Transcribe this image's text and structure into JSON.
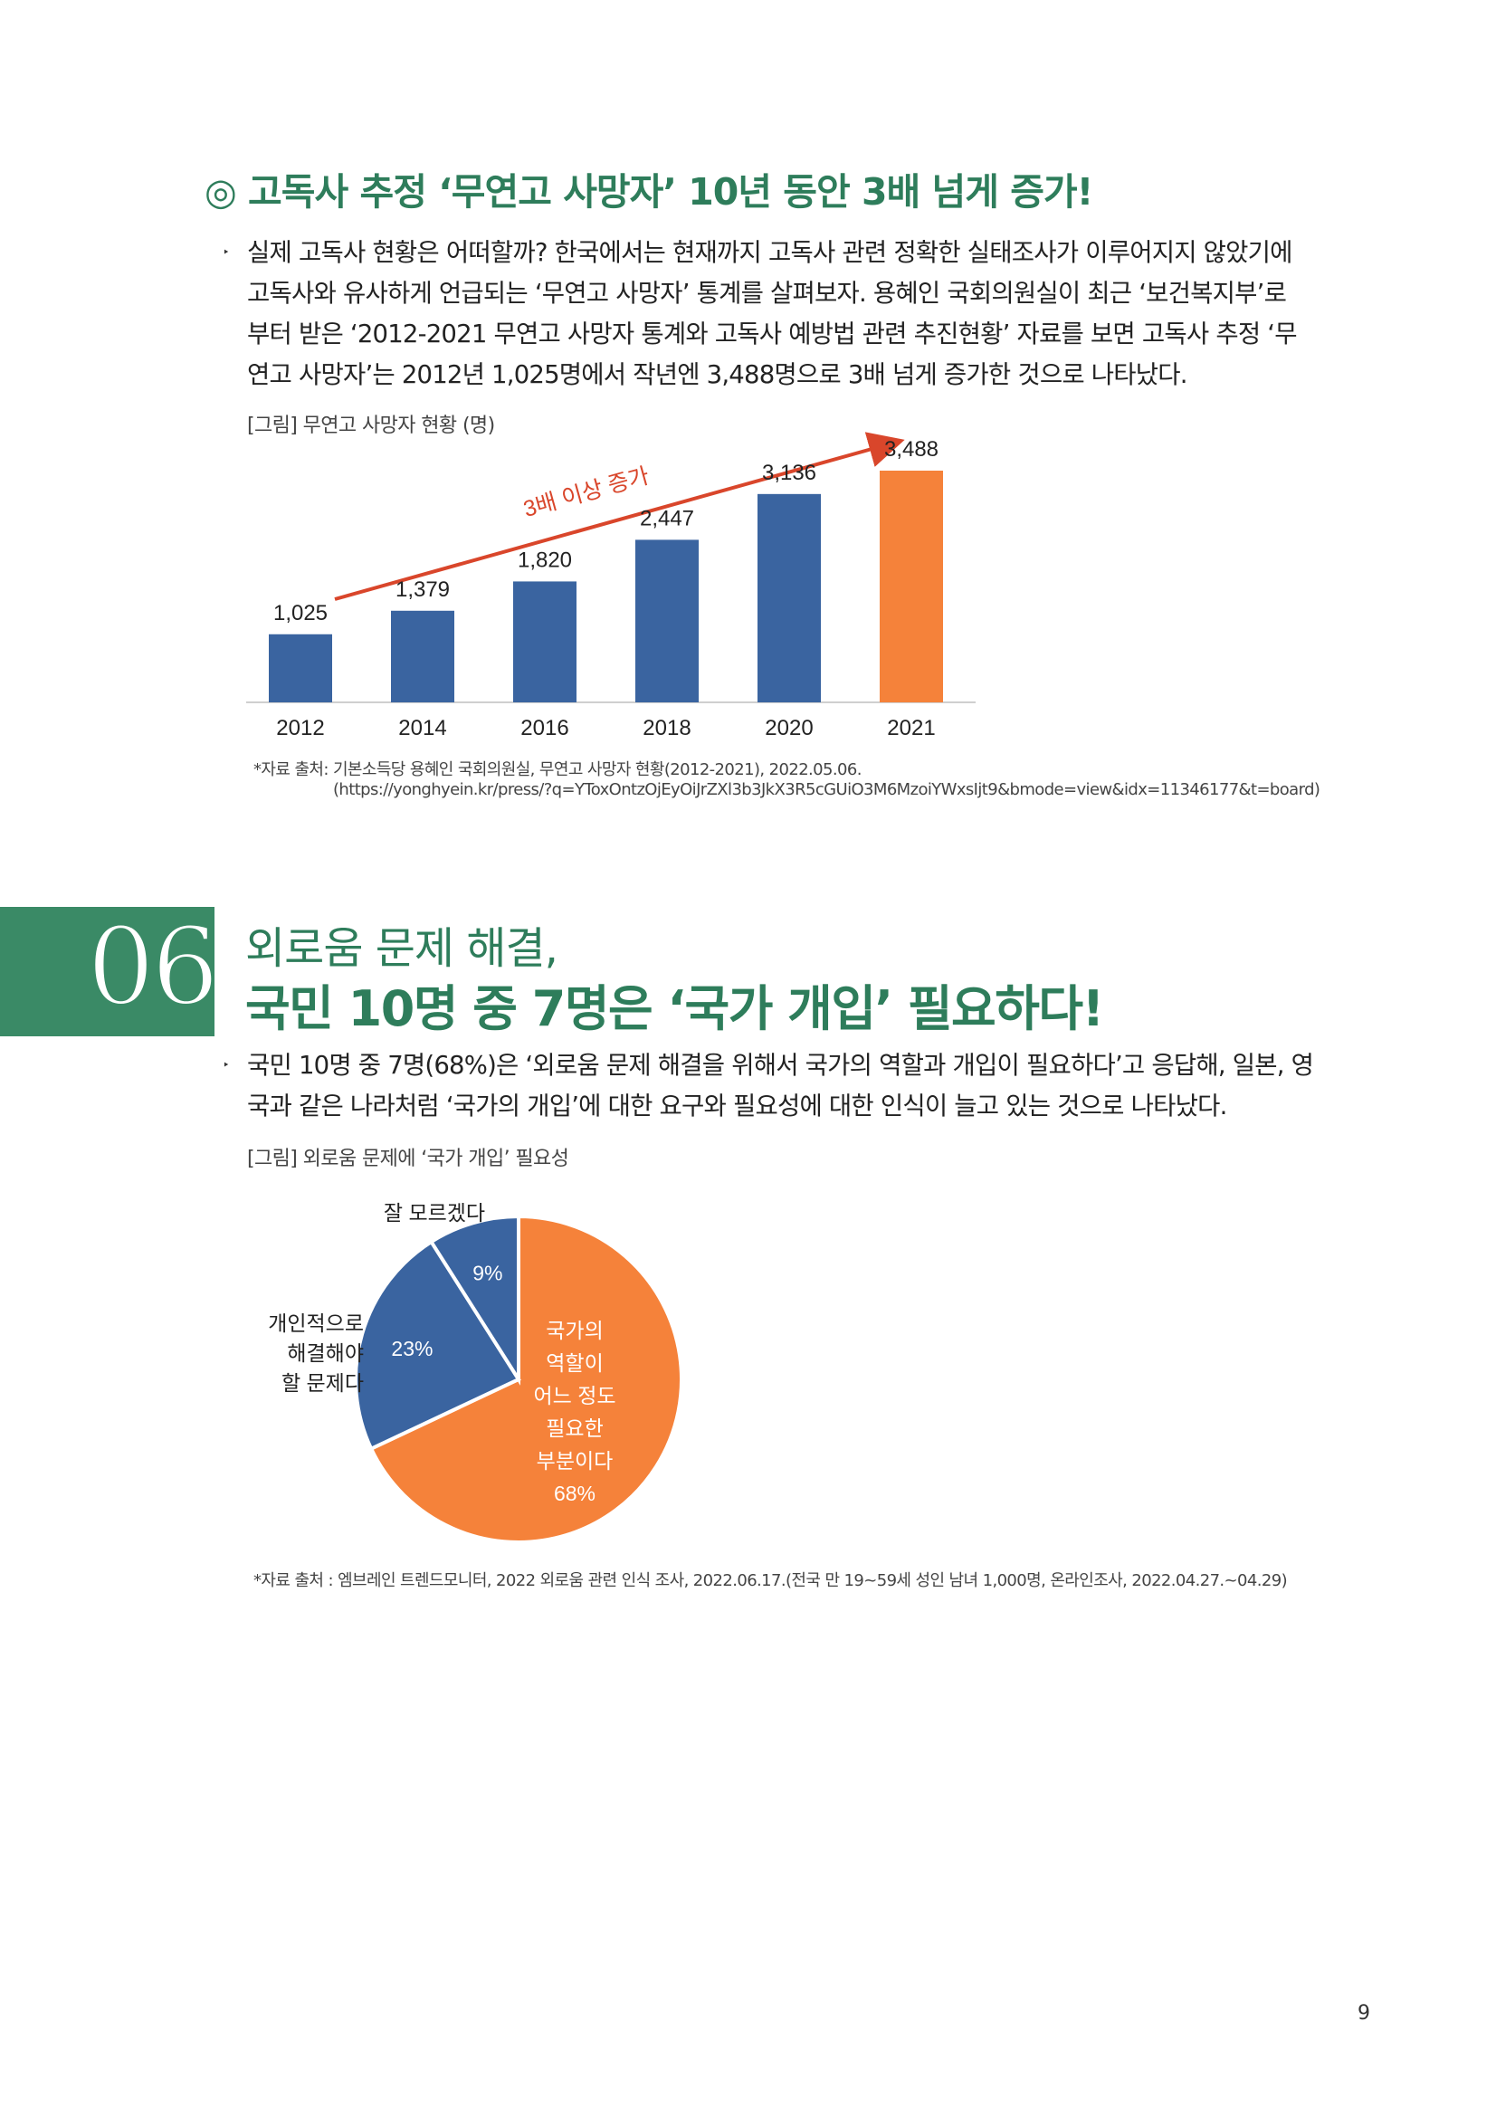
{
  "section1": {
    "heading": "◎ 고독사 추정 ‘무연고 사망자’ 10년 동안 3배 넘게 증가!",
    "bullet": "‣",
    "paragraph_lines": [
      "실제 고독사 현황은 어떠할까? 한국에서는 현재까지 고독사 관련 정확한 실태조사가 이루어지지 않았기에",
      "고독사와 유사하게 언급되는 ‘무연고 사망자’ 통계를 살펴보자. 용혜인 국회의원실이 최근 ‘보건복지부’로",
      "부터 받은 ‘2012-2021 무연고 사망자 통계와 고독사 예방법 관련 추진현황’ 자료를 보면 고독사 추정 ‘무",
      "연고 사망자’는 2012년 1,025명에서 작년엔 3,488명으로 3배 넘게 증가한 것으로 나타났다."
    ],
    "figure_caption": "[그림] 무연고 사망자 현황 (명)",
    "source_line1": "*자료 출처: 기본소득당 용혜인 국회의원실, 무연고 사망자 현황(2012-2021), 2022.05.06.",
    "source_line2": "(https://yonghyein.kr/press/?q=YToxOntzOjEyOiJrZXl3b3JkX3R5cGUiO3M6MzoiYWxsIjt9&bmode=view&idx=11346177&t=board)"
  },
  "section2": {
    "number": "06",
    "title_line1": "외로움 문제 해결,",
    "title_line2": "국민 10명 중 7명은 ‘국가 개입’ 필요하다!",
    "bullet": "‣",
    "paragraph_lines": [
      "국민 10명 중 7명(68%)은 ‘외로움 문제 해결을 위해서 국가의 역할과 개입이 필요하다’고 응답해, 일본, 영",
      "국과 같은 나라처럼 ‘국가의 개입’에 대한 요구와 필요성에 대한 인식이 늘고 있는 것으로 나타났다."
    ],
    "figure_caption": "[그림] 외로움 문제에 ‘국가 개입’ 필요성",
    "source": "*자료 출처 : 엠브레인 트렌드모니터, 2022 외로움 관련 인식 조사, 2022.06.17.(전국 만 19~59세 성인 남녀 1,000명, 온라인조사, 2022.04.27.~04.29)"
  },
  "page_number": "9",
  "colors": {
    "green": "#2e7d5b",
    "bar_blue": "#3a64a0",
    "highlight_orange": "#f5823a",
    "arrow_red": "#d9462b"
  },
  "chart_data": [
    {
      "type": "bar",
      "categories": [
        "2012",
        "2014",
        "2016",
        "2018",
        "2020",
        "2021"
      ],
      "values": [
        1025,
        1379,
        1820,
        2447,
        3136,
        3488
      ],
      "value_labels": [
        "1,025",
        "1,379",
        "1,820",
        "2,447",
        "3,136",
        "3,488"
      ],
      "highlight_index": 5,
      "annotation": "3배 이상 증가",
      "ylim": [
        0,
        3488
      ]
    },
    {
      "type": "pie",
      "slices": [
        {
          "label_lines": [
            "국가의",
            "역할이",
            "어느 정도",
            "필요한",
            "부분이다"
          ],
          "value": 68,
          "value_label": "68%",
          "color": "#f5823a"
        },
        {
          "label_lines": [
            "개인적으로",
            "해결해야",
            "할 문제다"
          ],
          "value": 23,
          "value_label": "23%",
          "color": "#3a64a0"
        },
        {
          "label_lines": [
            "잘 모르겠다"
          ],
          "value": 9,
          "value_label": "9%",
          "color": "#3a64a0"
        }
      ]
    }
  ]
}
